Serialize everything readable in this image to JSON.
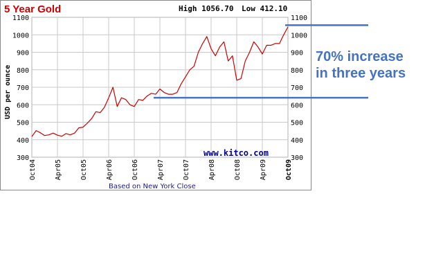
{
  "chart_data": {
    "type": "line",
    "title": "5 Year Gold",
    "high_label": "High 1056.70",
    "low_label": "Low 412.10",
    "ylabel": "USD per ounce",
    "footer": "Based on New York Close",
    "watermark": "www.kitco.com",
    "ylim": [
      300,
      1100
    ],
    "y_ticks": [
      "1100",
      "1000",
      "900",
      "800",
      "700",
      "600",
      "500",
      "400",
      "300"
    ],
    "x_ticks": [
      "Oct04",
      "Apr05",
      "Oct05",
      "Apr06",
      "Oct06",
      "Apr07",
      "Oct07",
      "Apr08",
      "Oct08",
      "Apr09",
      "Oct09"
    ],
    "x_tick_dates": [
      "2004-10",
      "2005-04",
      "2005-10",
      "2006-04",
      "2006-10",
      "2007-04",
      "2007-10",
      "2008-04",
      "2008-10",
      "2009-04",
      "2009-10"
    ],
    "grid": true,
    "series": [
      {
        "color": "#cc0000",
        "x": [
          "2004-10",
          "2004-11",
          "2004-12",
          "2005-01",
          "2005-02",
          "2005-03",
          "2005-04",
          "2005-05",
          "2005-06",
          "2005-07",
          "2005-08",
          "2005-09",
          "2005-10",
          "2005-11",
          "2005-12",
          "2006-01",
          "2006-02",
          "2006-03",
          "2006-04",
          "2006-05",
          "2006-06",
          "2006-07",
          "2006-08",
          "2006-09",
          "2006-10",
          "2006-11",
          "2006-12",
          "2007-01",
          "2007-02",
          "2007-03",
          "2007-04",
          "2007-05",
          "2007-06",
          "2007-07",
          "2007-08",
          "2007-09",
          "2007-10",
          "2007-11",
          "2007-12",
          "2008-01",
          "2008-02",
          "2008-03",
          "2008-04",
          "2008-05",
          "2008-06",
          "2008-07",
          "2008-08",
          "2008-09",
          "2008-10",
          "2008-11",
          "2008-12",
          "2009-01",
          "2009-02",
          "2009-03",
          "2009-04",
          "2009-05",
          "2009-06",
          "2009-07",
          "2009-08",
          "2009-09",
          "2009-10"
        ],
        "values": [
          418,
          452,
          440,
          424,
          428,
          438,
          426,
          420,
          435,
          428,
          438,
          468,
          472,
          495,
          520,
          560,
          555,
          585,
          640,
          700,
          590,
          640,
          630,
          600,
          590,
          630,
          625,
          650,
          665,
          660,
          690,
          670,
          660,
          660,
          670,
          720,
          760,
          800,
          820,
          900,
          950,
          990,
          920,
          880,
          930,
          960,
          850,
          880,
          740,
          750,
          850,
          900,
          960,
          930,
          890,
          940,
          940,
          950,
          950,
          1000,
          1045
        ]
      }
    ]
  },
  "annotation": {
    "line1": "70% increase",
    "line2": "in three years",
    "color": "#4472c4",
    "upper_level": 1055,
    "lower_level": 640
  }
}
